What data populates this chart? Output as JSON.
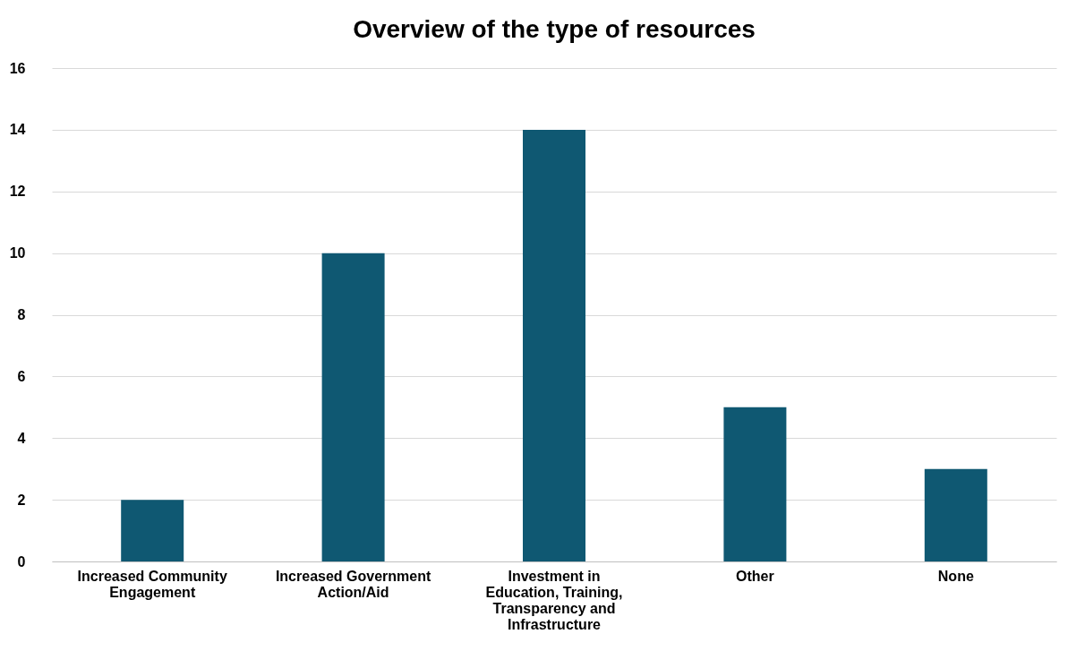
{
  "chart_data": {
    "type": "bar",
    "title": "Overview of the type of resources",
    "categories": [
      "Increased Community Engagement",
      "Increased Government Action/Aid",
      "Investment in Education, Training, Transparency and Infrastructure",
      "Other",
      "None"
    ],
    "values": [
      2,
      10,
      14,
      5,
      3
    ],
    "color": "#0f5872",
    "ylim": [
      0,
      16
    ],
    "yticks": [
      0,
      2,
      4,
      6,
      8,
      10,
      12,
      14,
      16
    ],
    "grid": "y"
  }
}
